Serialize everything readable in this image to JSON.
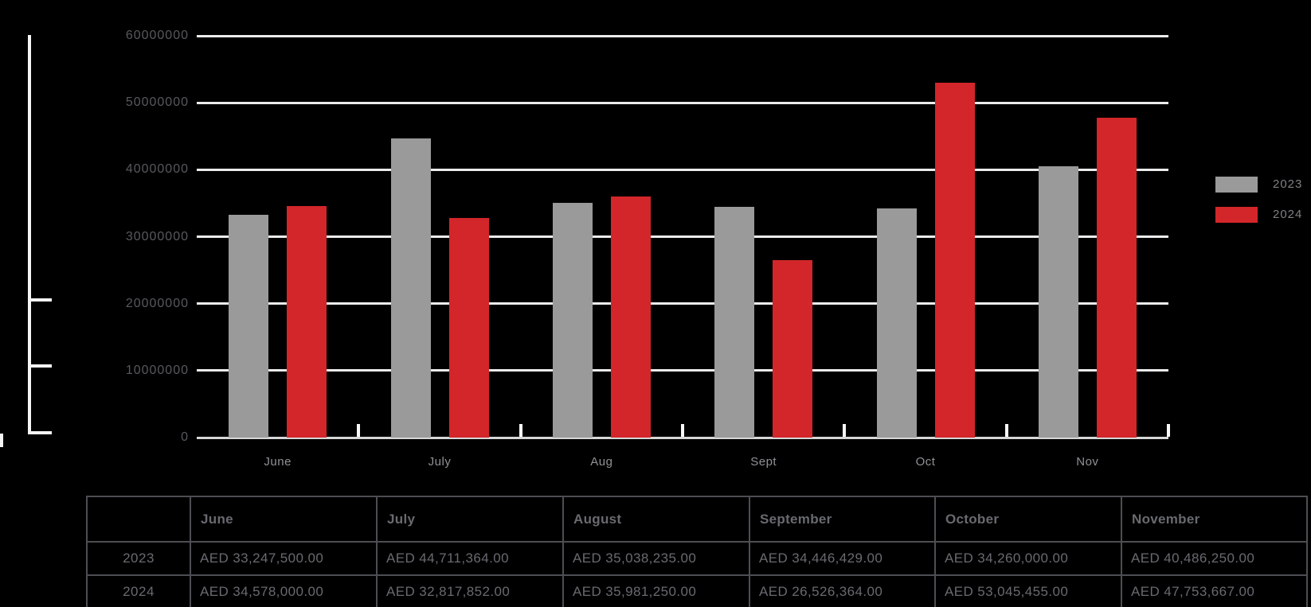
{
  "chart_data": {
    "type": "bar",
    "title": "",
    "xlabel": "",
    "ylabel": "",
    "categories": [
      "June",
      "July",
      "Aug",
      "Sept",
      "Oct",
      "Nov"
    ],
    "series": [
      {
        "name": "2023",
        "color": "#9a9a9a",
        "values": [
          33247500,
          44711364,
          35038235,
          34446429,
          34260000,
          40486250
        ]
      },
      {
        "name": "2024",
        "color": "#d2262a",
        "values": [
          34578000,
          32817852,
          35981250,
          26526364,
          53045455,
          47753667
        ]
      }
    ],
    "ylim": [
      0,
      60000000
    ],
    "ytick_interval": 10000000,
    "ytick_labels": [
      "60000000",
      "50000000",
      "40000000",
      "30000000",
      "20000000",
      "10000000",
      "0"
    ],
    "grid": "horizontal",
    "legend_position": "right",
    "background": "#000000"
  },
  "legend": {
    "items": [
      {
        "label": "2023",
        "color": "#9a9a9a"
      },
      {
        "label": "2024",
        "color": "#d2262a"
      }
    ]
  },
  "table": {
    "columns": [
      "",
      "June",
      "July",
      "August",
      "September",
      "October",
      "November"
    ],
    "rows": [
      {
        "label": "2023",
        "values": [
          "AED 33,247,500.00",
          "AED 44,711,364.00",
          "AED 35,038,235.00",
          "AED 34,446,429.00",
          "AED 34,260,000.00",
          "AED 40,486,250.00"
        ]
      },
      {
        "label": "2024",
        "values": [
          "AED 34,578,000.00",
          "AED 32,817,852.00",
          "AED 35,981,250.00",
          "AED 26,526,364.00",
          "AED 53,045,455.00",
          "AED 47,753,667.00"
        ]
      }
    ]
  },
  "colors": {
    "background": "#000000",
    "bar_2023": "#9a9a9a",
    "bar_2024": "#d2262a",
    "gridline": "#ececec",
    "baseline": "#d6d6d6",
    "axis_label": "#58595d",
    "month_label": "#909196",
    "legend_label": "#7f8084",
    "table_border": "#4d4e53",
    "table_text": "#696a70",
    "ruler": "#f5f5f5"
  }
}
